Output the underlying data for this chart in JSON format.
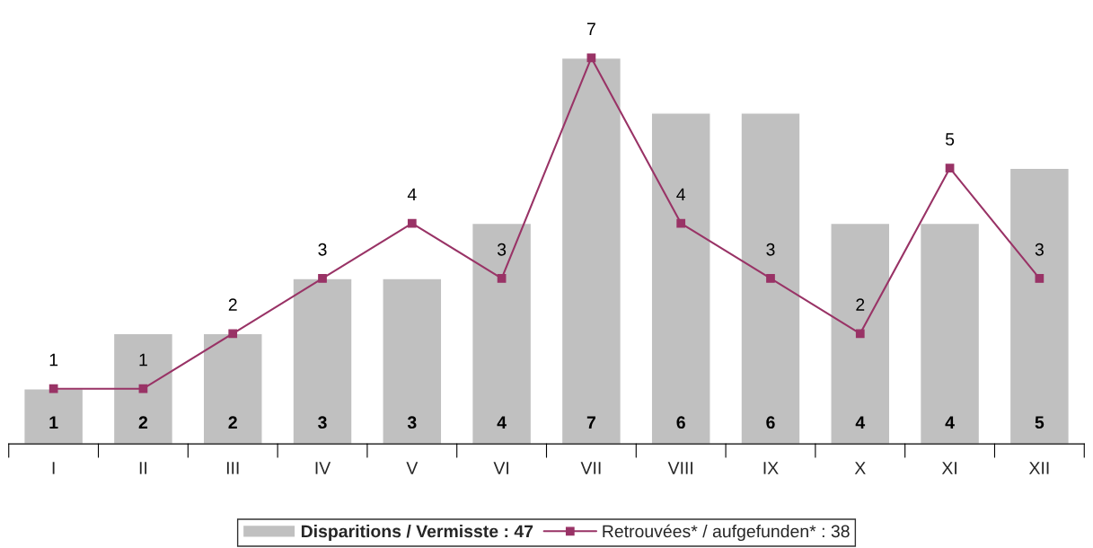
{
  "chart_data": {
    "type": "bar",
    "categories": [
      "I",
      "II",
      "III",
      "IV",
      "V",
      "VI",
      "VII",
      "VIII",
      "IX",
      "X",
      "XI",
      "XII"
    ],
    "series": [
      {
        "name": "Disparitions / Vermisste : 47",
        "color": "#c0c0c0",
        "values": [
          1,
          2,
          2,
          3,
          3,
          4,
          7,
          6,
          6,
          4,
          4,
          5
        ]
      },
      {
        "name": "Retrouvées* / aufgefunden* : 38",
        "type": "line",
        "color": "#993366",
        "values": [
          1,
          1,
          2,
          3,
          4,
          3,
          7,
          4,
          3,
          2,
          5,
          3
        ]
      }
    ],
    "data_labels": true,
    "legend": "bottom",
    "marker": "square",
    "grid": false
  }
}
